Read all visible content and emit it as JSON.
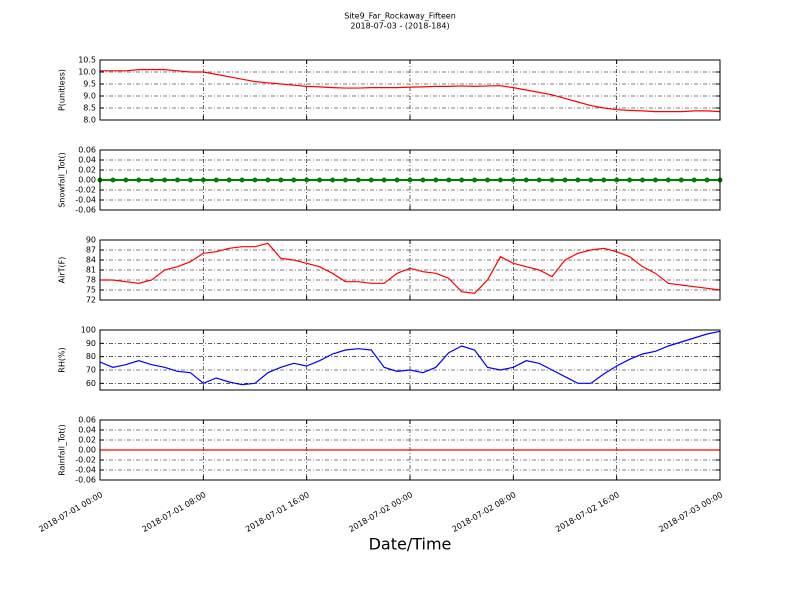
{
  "chart_data": {
    "type": "line",
    "title": "Site9_Far_Rockaway_Fifteen",
    "subtitle": "2018-07-03 - (2018-184)",
    "xlabel": "Date/Time",
    "grid": true,
    "xlim": [
      "2018-07-01 00:00",
      "2018-07-03 00:00"
    ],
    "xticks": [
      "2018-07-01 00:00",
      "2018-07-01 08:00",
      "2018-07-01 16:00",
      "2018-07-02 00:00",
      "2018-07-02 08:00",
      "2018-07-02 16:00",
      "2018-07-03 00:00"
    ],
    "x": [
      "2018-07-01 00:00",
      "2018-07-01 01:00",
      "2018-07-01 02:00",
      "2018-07-01 03:00",
      "2018-07-01 04:00",
      "2018-07-01 05:00",
      "2018-07-01 06:00",
      "2018-07-01 07:00",
      "2018-07-01 08:00",
      "2018-07-01 09:00",
      "2018-07-01 10:00",
      "2018-07-01 11:00",
      "2018-07-01 12:00",
      "2018-07-01 13:00",
      "2018-07-01 14:00",
      "2018-07-01 15:00",
      "2018-07-01 16:00",
      "2018-07-01 17:00",
      "2018-07-01 18:00",
      "2018-07-01 19:00",
      "2018-07-01 20:00",
      "2018-07-01 21:00",
      "2018-07-01 22:00",
      "2018-07-01 23:00",
      "2018-07-02 00:00",
      "2018-07-02 01:00",
      "2018-07-02 02:00",
      "2018-07-02 03:00",
      "2018-07-02 04:00",
      "2018-07-02 05:00",
      "2018-07-02 06:00",
      "2018-07-02 07:00",
      "2018-07-02 08:00",
      "2018-07-02 09:00",
      "2018-07-02 10:00",
      "2018-07-02 11:00",
      "2018-07-02 12:00",
      "2018-07-02 13:00",
      "2018-07-02 14:00",
      "2018-07-02 15:00",
      "2018-07-02 16:00",
      "2018-07-02 17:00",
      "2018-07-02 18:00",
      "2018-07-02 19:00",
      "2018-07-02 20:00",
      "2018-07-02 21:00",
      "2018-07-02 22:00",
      "2018-07-02 23:00",
      "2018-07-03 00:00"
    ],
    "panels": [
      {
        "ylabel": "P(unitless)",
        "ylim": [
          8,
          10.5
        ],
        "yticks": [
          {
            "value": 8,
            "label": "8.0"
          },
          8.5,
          {
            "value": 9,
            "label": "9.0"
          },
          9.5,
          {
            "value": 10,
            "label": "10.0"
          },
          10.5
        ],
        "series": [
          {
            "color": "#ff0000",
            "values": [
              10.05,
              10.05,
              10.05,
              10.1,
              10.1,
              10.1,
              10.05,
              10.0,
              10.0,
              9.9,
              9.8,
              9.7,
              9.6,
              9.55,
              9.5,
              9.45,
              9.4,
              9.38,
              9.35,
              9.33,
              9.33,
              9.35,
              9.35,
              9.35,
              9.37,
              9.38,
              9.4,
              9.4,
              9.42,
              9.4,
              9.42,
              9.43,
              9.35,
              9.25,
              9.15,
              9.05,
              8.9,
              8.75,
              8.6,
              8.5,
              8.43,
              8.4,
              8.38,
              8.35,
              8.35,
              8.35,
              8.38,
              8.38,
              8.35
            ]
          }
        ]
      },
      {
        "ylabel": "Snowfall_Tot()",
        "ylim": [
          -0.06,
          0.06
        ],
        "yticks": [
          -0.06,
          -0.04,
          -0.02,
          {
            "value": 0,
            "label": "0.00"
          },
          0.02,
          0.04,
          0.06
        ],
        "series": [
          {
            "color": "#008000",
            "marker": "o",
            "values": [
              0,
              0,
              0,
              0,
              0,
              0,
              0,
              0,
              0,
              0,
              0,
              0,
              0,
              0,
              0,
              0,
              0,
              0,
              0,
              0,
              0,
              0,
              0,
              0,
              0,
              0,
              0,
              0,
              0,
              0,
              0,
              0,
              0,
              0,
              0,
              0,
              0,
              0,
              0,
              0,
              0,
              0,
              0,
              0,
              0,
              0,
              0,
              0,
              0
            ]
          }
        ]
      },
      {
        "ylabel": "AirT(F)",
        "ylim": [
          72,
          90
        ],
        "yticks": [
          72,
          75,
          78,
          81,
          84,
          87,
          90
        ],
        "series": [
          {
            "color": "#ff0000",
            "values": [
              78,
              78,
              77.5,
              77,
              78,
              81,
              82,
              83.5,
              86,
              86.5,
              87.5,
              88,
              88,
              89,
              84.5,
              84,
              83,
              82,
              80,
              77.5,
              77.5,
              77,
              77,
              80,
              81.5,
              80.5,
              80,
              78.5,
              74.5,
              74,
              78,
              85,
              83,
              82,
              81,
              79,
              84,
              86,
              87,
              87.5,
              86.5,
              85,
              82,
              80,
              77,
              76.5,
              76,
              75.5,
              75
            ]
          }
        ]
      },
      {
        "ylabel": "RH(%)",
        "ylim": [
          55,
          100
        ],
        "yticks": [
          60,
          70,
          80,
          90,
          100
        ],
        "series": [
          {
            "color": "#0000ff",
            "values": [
              76,
              72,
              74,
              77,
              74,
              72,
              69,
              68,
              60,
              64,
              61,
              59,
              60,
              68,
              72,
              75,
              73,
              77,
              82,
              85,
              86,
              85,
              72,
              69,
              70,
              68,
              72,
              83,
              88,
              85,
              72,
              70,
              72,
              77,
              75,
              70,
              65,
              60,
              60,
              67,
              73,
              78,
              82,
              84,
              88,
              91,
              94,
              97,
              99
            ]
          }
        ]
      },
      {
        "ylabel": "Rainfall_Tot()",
        "ylim": [
          -0.06,
          0.06
        ],
        "yticks": [
          -0.06,
          -0.04,
          -0.02,
          {
            "value": 0,
            "label": "0.00"
          },
          0.02,
          0.04,
          0.06
        ],
        "series": [
          {
            "color": "#ff0000",
            "values": [
              0,
              0,
              0,
              0,
              0,
              0,
              0,
              0,
              0,
              0,
              0,
              0,
              0,
              0,
              0,
              0,
              0,
              0,
              0,
              0,
              0,
              0,
              0,
              0,
              0,
              0,
              0,
              0,
              0,
              0,
              0,
              0,
              0,
              0,
              0,
              0,
              0,
              0,
              0,
              0,
              0,
              0,
              0,
              0,
              0,
              0,
              0,
              0,
              0
            ]
          }
        ]
      }
    ]
  }
}
